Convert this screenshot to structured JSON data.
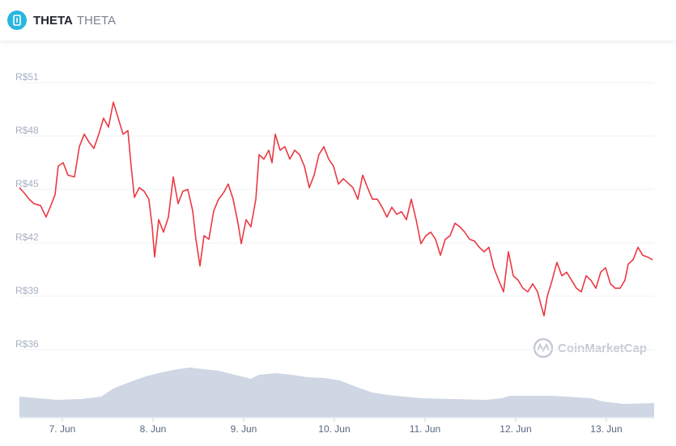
{
  "chart_data": [
    {
      "type": "line",
      "title": "THETA",
      "subtitle": "THETA",
      "annotation": "CoinMarketCap",
      "color": "#ea3943",
      "grid": true,
      "xlim": [
        6.527,
        13.527
      ],
      "xticks": [
        {
          "value": 7,
          "label": "7. Jun"
        },
        {
          "value": 8,
          "label": "8. Jun"
        },
        {
          "value": 9,
          "label": "9. Jun"
        },
        {
          "value": 10,
          "label": "10. Jun"
        },
        {
          "value": 11,
          "label": "11. Jun"
        },
        {
          "value": 12,
          "label": "12. Jun"
        },
        {
          "value": 13,
          "label": "13. Jun"
        }
      ],
      "ylim": [
        36,
        51
      ],
      "yticks": [
        {
          "value": 36,
          "label": "R$36"
        },
        {
          "value": 39,
          "label": "R$39"
        },
        {
          "value": 42,
          "label": "R$42"
        },
        {
          "value": 45,
          "label": "R$45"
        },
        {
          "value": 48,
          "label": "R$48"
        },
        {
          "value": 51,
          "label": "R$51"
        }
      ],
      "x": [
        6.527,
        6.58,
        6.634,
        6.688,
        6.759,
        6.821,
        6.866,
        6.92,
        6.955,
        7.009,
        7.063,
        7.134,
        7.188,
        7.241,
        7.295,
        7.348,
        7.402,
        7.455,
        7.509,
        7.563,
        7.616,
        7.67,
        7.723,
        7.759,
        7.795,
        7.848,
        7.902,
        7.955,
        7.991,
        8.018,
        8.063,
        8.116,
        8.17,
        8.223,
        8.277,
        8.33,
        8.384,
        8.438,
        8.473,
        8.518,
        8.563,
        8.616,
        8.67,
        8.723,
        8.777,
        8.83,
        8.884,
        8.938,
        8.973,
        9.027,
        9.08,
        9.134,
        9.17,
        9.223,
        9.277,
        9.313,
        9.348,
        9.402,
        9.455,
        9.509,
        9.563,
        9.616,
        9.67,
        9.723,
        9.777,
        9.83,
        9.884,
        9.938,
        9.991,
        10.045,
        10.098,
        10.152,
        10.205,
        10.259,
        10.313,
        10.366,
        10.42,
        10.473,
        10.527,
        10.58,
        10.634,
        10.688,
        10.741,
        10.795,
        10.848,
        10.902,
        10.955,
        11.009,
        11.063,
        11.116,
        11.17,
        11.223,
        11.277,
        11.33,
        11.384,
        11.438,
        11.491,
        11.545,
        11.598,
        11.652,
        11.705,
        11.759,
        11.813,
        11.866,
        11.92,
        11.973,
        12.027,
        12.08,
        12.134,
        12.188,
        12.241,
        12.277,
        12.313,
        12.348,
        12.402,
        12.455,
        12.509,
        12.563,
        12.616,
        12.67,
        12.723,
        12.777,
        12.83,
        12.884,
        12.938,
        12.991,
        13.045,
        13.098,
        13.152,
        13.205,
        13.241,
        13.295,
        13.348,
        13.402,
        13.455,
        13.509
      ],
      "values": [
        45.1,
        44.8,
        44.45,
        44.2,
        44.1,
        43.45,
        44.0,
        44.7,
        46.3,
        46.5,
        45.8,
        45.7,
        47.4,
        48.1,
        47.65,
        47.3,
        48.1,
        49.0,
        48.5,
        49.9,
        49.0,
        48.1,
        48.3,
        46.3,
        44.55,
        45.1,
        44.9,
        44.45,
        42.9,
        41.2,
        43.3,
        42.6,
        43.45,
        45.7,
        44.2,
        44.9,
        45.0,
        43.8,
        42.2,
        40.7,
        42.4,
        42.2,
        43.8,
        44.45,
        44.8,
        45.3,
        44.45,
        43.1,
        41.95,
        43.3,
        42.9,
        44.45,
        46.95,
        46.7,
        47.2,
        46.5,
        48.1,
        47.2,
        47.4,
        46.7,
        47.2,
        46.95,
        46.3,
        45.1,
        45.8,
        46.95,
        47.4,
        46.7,
        46.3,
        45.3,
        45.6,
        45.35,
        45.1,
        44.45,
        45.8,
        45.1,
        44.45,
        44.45,
        44.0,
        43.45,
        44.0,
        43.6,
        43.75,
        43.3,
        44.45,
        43.3,
        41.95,
        42.4,
        42.6,
        42.2,
        41.3,
        42.2,
        42.4,
        43.1,
        42.9,
        42.6,
        42.2,
        42.1,
        41.75,
        41.5,
        41.75,
        40.6,
        39.9,
        39.25,
        41.5,
        40.15,
        39.9,
        39.45,
        39.25,
        39.7,
        39.25,
        38.55,
        37.9,
        39.0,
        39.9,
        40.9,
        40.15,
        40.35,
        39.9,
        39.45,
        39.25,
        40.15,
        39.9,
        39.45,
        40.35,
        40.6,
        39.7,
        39.45,
        39.45,
        39.9,
        40.8,
        41.05,
        41.75,
        41.3,
        41.2,
        41.05
      ]
    },
    {
      "type": "area",
      "color": "#cfd6e4",
      "xlim": [
        6.527,
        13.527
      ],
      "ylim": [
        0,
        100
      ],
      "x": [
        6.527,
        6.848,
        6.938,
        7.205,
        7.429,
        7.563,
        7.741,
        7.92,
        8.098,
        8.277,
        8.411,
        8.545,
        8.723,
        8.902,
        9.08,
        9.17,
        9.348,
        9.527,
        9.705,
        9.884,
        10.063,
        10.241,
        10.42,
        10.598,
        10.777,
        10.955,
        11.313,
        11.67,
        11.848,
        11.938,
        12.384,
        12.563,
        12.83,
        12.964,
        13.188,
        13.527
      ],
      "values": [
        35.7,
        31.4,
        30,
        31.4,
        35.7,
        50,
        61.4,
        71.4,
        78.6,
        84.3,
        87.1,
        84.3,
        81.4,
        74.3,
        67.1,
        74.3,
        77.1,
        74.3,
        70,
        68.6,
        64.3,
        52.9,
        42.9,
        38.6,
        35.7,
        32.9,
        31.4,
        30,
        32.9,
        37.1,
        37.1,
        35.7,
        32.9,
        27.1,
        22.9,
        24.3
      ]
    }
  ]
}
